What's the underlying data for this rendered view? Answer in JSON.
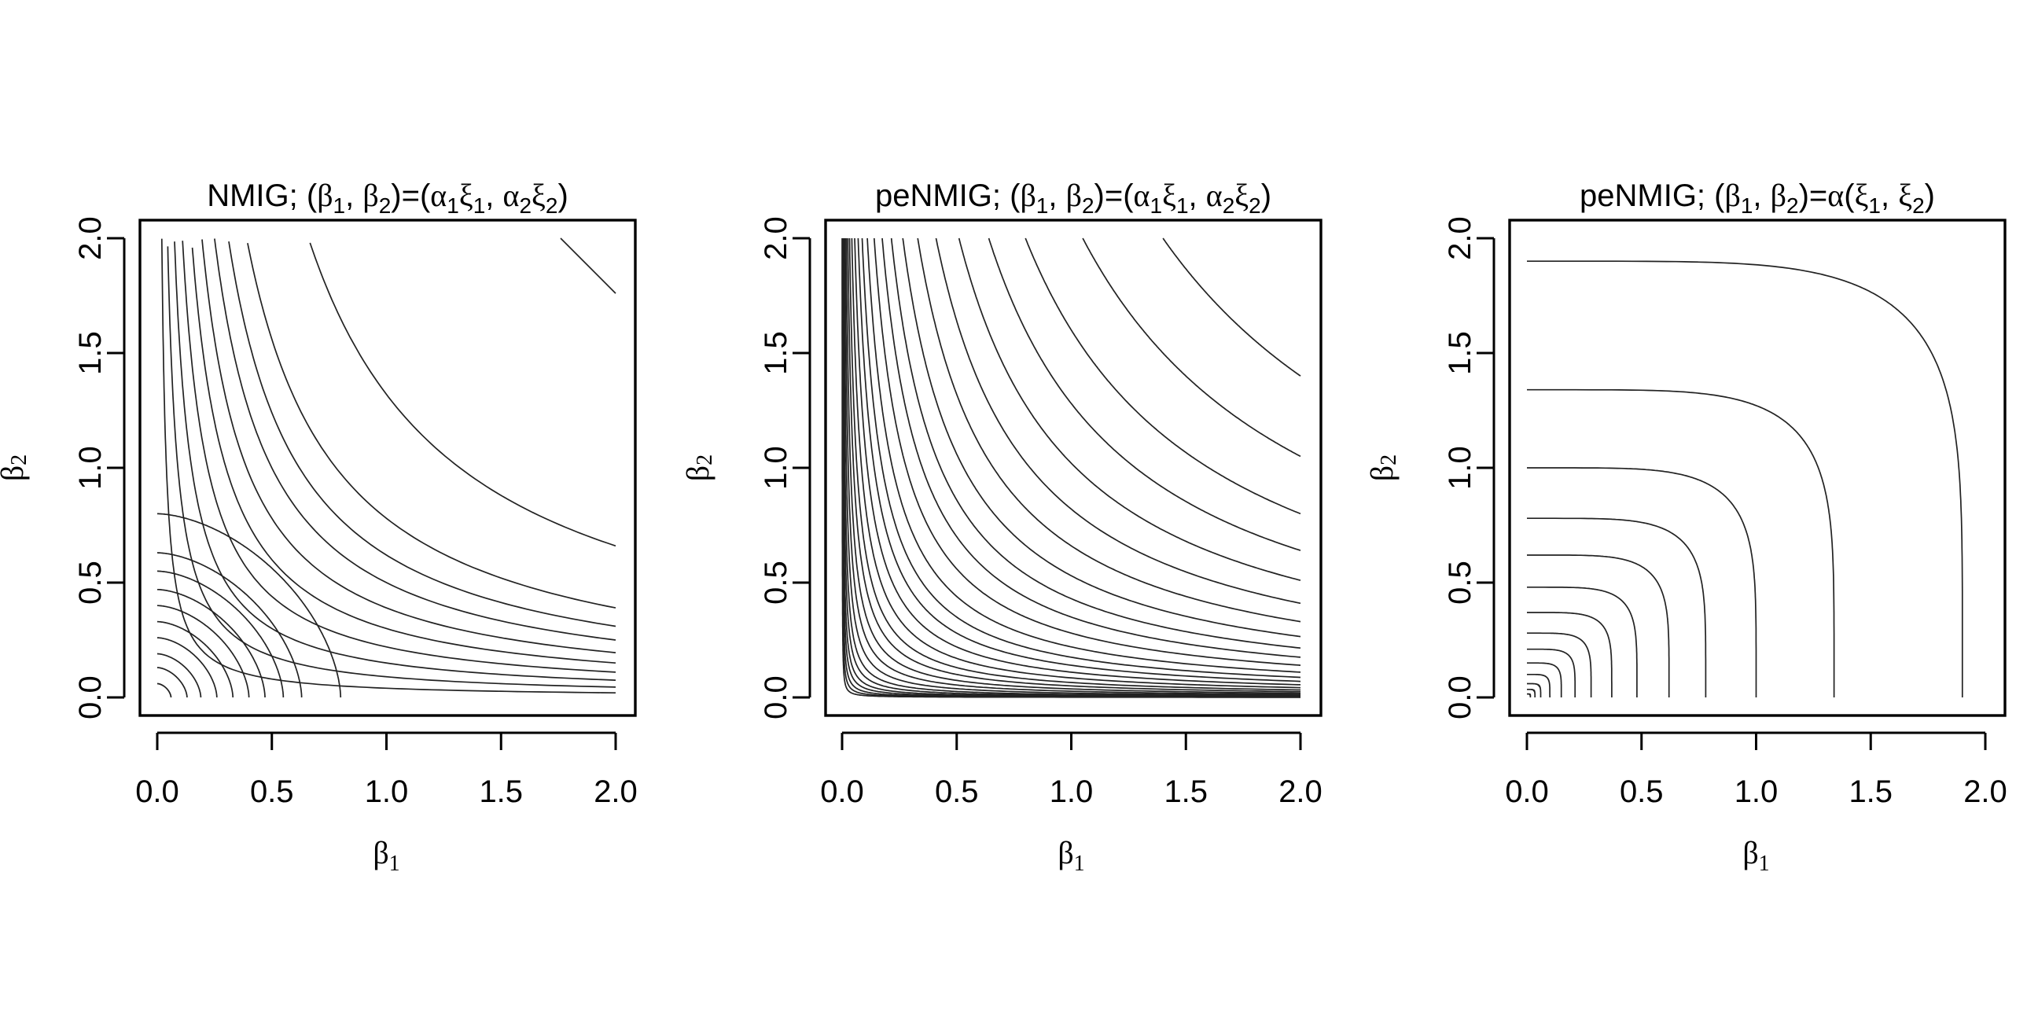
{
  "chart_data": [
    {
      "type": "contour",
      "title_parts": [
        {
          "t": "NMIG; ("
        },
        {
          "t": "β",
          "g": 1
        },
        {
          "t": "1",
          "sub": 1
        },
        {
          "t": ", "
        },
        {
          "t": "β",
          "g": 1
        },
        {
          "t": "2",
          "sub": 1
        },
        {
          "t": ")=("
        },
        {
          "t": "α",
          "g": 1
        },
        {
          "t": "1",
          "sub": 1
        },
        {
          "t": "ξ",
          "g": 1
        },
        {
          "t": "1",
          "sub": 1
        },
        {
          "t": ", "
        },
        {
          "t": "α",
          "g": 1
        },
        {
          "t": "2",
          "sub": 1
        },
        {
          "t": "ξ",
          "g": 1
        },
        {
          "t": "2",
          "sub": 1
        },
        {
          "t": ")"
        }
      ],
      "xlabel": {
        "sym": "β",
        "sub": "1"
      },
      "ylabel": {
        "sym": "β",
        "sub": "2"
      },
      "xlim": [
        0,
        2
      ],
      "ylim": [
        0,
        2
      ],
      "xticks": [
        0.0,
        0.5,
        1.0,
        1.5,
        2.0
      ],
      "yticks": [
        0.0,
        0.5,
        1.0,
        1.5,
        2.0
      ],
      "xtick_labels": [
        "0.0",
        "0.5",
        "1.0",
        "1.5",
        "2.0"
      ],
      "ytick_labels": [
        "0.0",
        "0.5",
        "1.0",
        "1.5",
        "2.0"
      ],
      "contour_family": "nmig",
      "hyperbolic_levels": [
        0.04,
        0.09,
        0.15,
        0.22,
        0.3,
        0.39,
        0.5,
        0.62,
        0.78,
        1.32
      ],
      "straight_levels": [
        0.06,
        0.13,
        0.19,
        0.26,
        0.33,
        0.4,
        0.47,
        0.55,
        0.63,
        0.8
      ],
      "corner_segment": {
        "x": [
          1.76,
          2.0
        ],
        "y": [
          2.0,
          1.76
        ]
      }
    },
    {
      "type": "contour",
      "title_parts": [
        {
          "t": "peNMIG; ("
        },
        {
          "t": "β",
          "g": 1
        },
        {
          "t": "1",
          "sub": 1
        },
        {
          "t": ", "
        },
        {
          "t": "β",
          "g": 1
        },
        {
          "t": "2",
          "sub": 1
        },
        {
          "t": ")=("
        },
        {
          "t": "α",
          "g": 1
        },
        {
          "t": "1",
          "sub": 1
        },
        {
          "t": "ξ",
          "g": 1
        },
        {
          "t": "1",
          "sub": 1
        },
        {
          "t": ", "
        },
        {
          "t": "α",
          "g": 1
        },
        {
          "t": "2",
          "sub": 1
        },
        {
          "t": "ξ",
          "g": 1
        },
        {
          "t": "2",
          "sub": 1
        },
        {
          "t": ")"
        }
      ],
      "xlabel": {
        "sym": "β",
        "sub": "1"
      },
      "ylabel": {
        "sym": "β",
        "sub": "2"
      },
      "xlim": [
        0,
        2
      ],
      "ylim": [
        0,
        2
      ],
      "xticks": [
        0.0,
        0.5,
        1.0,
        1.5,
        2.0
      ],
      "yticks": [
        0.0,
        0.5,
        1.0,
        1.5,
        2.0
      ],
      "xtick_labels": [
        "0.0",
        "0.5",
        "1.0",
        "1.5",
        "2.0"
      ],
      "ytick_labels": [
        "0.0",
        "0.5",
        "1.0",
        "1.5",
        "2.0"
      ],
      "contour_family": "product",
      "product_levels": [
        2.8,
        2.1,
        1.6,
        1.28,
        1.02,
        0.82,
        0.66,
        0.53,
        0.43,
        0.35,
        0.28,
        0.22,
        0.175,
        0.14,
        0.11,
        0.085,
        0.065,
        0.05,
        0.037,
        0.027,
        0.019,
        0.013,
        0.009,
        0.006,
        0.004,
        0.0025,
        0.0015,
        0.0008
      ]
    },
    {
      "type": "contour",
      "title_parts": [
        {
          "t": "peNMIG; ("
        },
        {
          "t": "β",
          "g": 1
        },
        {
          "t": "1",
          "sub": 1
        },
        {
          "t": ", "
        },
        {
          "t": "β",
          "g": 1
        },
        {
          "t": "2",
          "sub": 1
        },
        {
          "t": ")="
        },
        {
          "t": "α",
          "g": 1
        },
        {
          "t": "("
        },
        {
          "t": "ξ",
          "g": 1
        },
        {
          "t": "1",
          "sub": 1
        },
        {
          "t": ", "
        },
        {
          "t": "ξ",
          "g": 1
        },
        {
          "t": "2",
          "sub": 1
        },
        {
          "t": ")"
        }
      ],
      "xlabel": {
        "sym": "β",
        "sub": "1"
      },
      "ylabel": {
        "sym": "β",
        "sub": "2"
      },
      "xlim": [
        0,
        2
      ],
      "ylim": [
        0,
        2
      ],
      "xticks": [
        0.0,
        0.5,
        1.0,
        1.5,
        2.0
      ],
      "yticks": [
        0.0,
        0.5,
        1.0,
        1.5,
        2.0
      ],
      "xtick_labels": [
        "0.0",
        "0.5",
        "1.0",
        "1.5",
        "2.0"
      ],
      "ytick_labels": [
        "0.0",
        "0.5",
        "1.0",
        "1.5",
        "2.0"
      ],
      "contour_family": "superellipse",
      "exponent": 5,
      "radius_levels": [
        1.9,
        1.34,
        1.0,
        0.78,
        0.62,
        0.48,
        0.37,
        0.28,
        0.21,
        0.15,
        0.1,
        0.06,
        0.035,
        0.015
      ]
    }
  ]
}
